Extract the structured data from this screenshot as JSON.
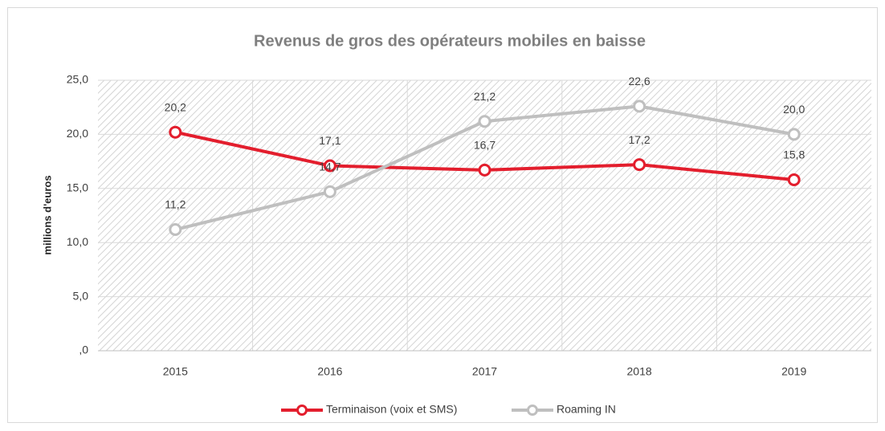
{
  "chart_data": {
    "type": "line",
    "title": "Revenus de gros des opérateurs mobiles en baisse",
    "y_label": "millions d'euros",
    "categories": [
      "2015",
      "2016",
      "2017",
      "2018",
      "2019"
    ],
    "series": [
      {
        "name": "Terminaison (voix et SMS)",
        "color": "#e31e2d",
        "values": [
          20.2,
          17.1,
          16.7,
          17.2,
          15.8
        ],
        "value_labels": [
          "20,2",
          "17,1",
          "16,7",
          "17,2",
          "15,8"
        ]
      },
      {
        "name": "Roaming IN",
        "color": "#bfbfbf",
        "values": [
          11.2,
          14.7,
          21.2,
          22.6,
          20.0
        ],
        "value_labels": [
          "11,2",
          "14,7",
          "21,2",
          "22,6",
          "20,0"
        ]
      }
    ],
    "ylim": [
      0,
      25
    ],
    "yticks": [
      {
        "value": 0,
        "label": ",0"
      },
      {
        "value": 5,
        "label": "5,0"
      },
      {
        "value": 10,
        "label": "10,0"
      },
      {
        "value": 15,
        "label": "15,0"
      },
      {
        "value": 20,
        "label": "20,0"
      },
      {
        "value": 25,
        "label": "25,0"
      }
    ],
    "grid": true,
    "legend": "bottom"
  }
}
